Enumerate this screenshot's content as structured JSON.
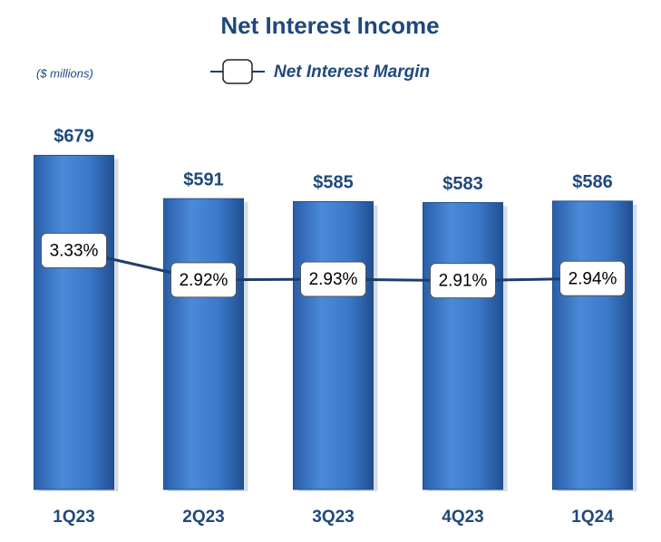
{
  "chart_data": {
    "type": "bar",
    "title": "Net Interest Income",
    "subtitle": "($ millions)",
    "categories": [
      "1Q23",
      "2Q23",
      "3Q23",
      "4Q23",
      "1Q24"
    ],
    "series": [
      {
        "type": "bar",
        "color": "#3a78c9",
        "values": [
          679,
          591,
          585,
          583,
          586
        ],
        "value_labels": [
          "$679",
          "$591",
          "$585",
          "$583",
          "$586"
        ]
      },
      {
        "type": "line",
        "name": "Net Interest Margin",
        "axis": "y2",
        "color": "#1f3d6e",
        "values": [
          3.33,
          2.92,
          2.93,
          2.91,
          2.94
        ],
        "value_labels": [
          "3.33%",
          "2.92%",
          "2.93%",
          "2.91%",
          "2.94%"
        ]
      }
    ],
    "ylim": [
      0,
      700
    ],
    "y2lim": [
      0,
      4.8
    ]
  }
}
